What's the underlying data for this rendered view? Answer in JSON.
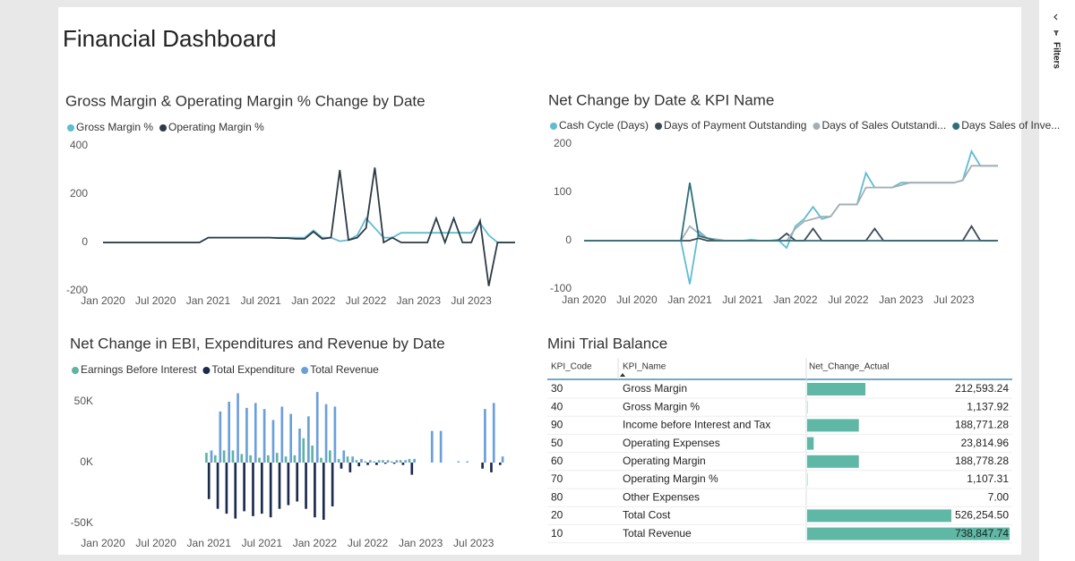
{
  "header": {
    "title": "Financial Dashboard",
    "filters": "Filters"
  },
  "chart_data": [
    {
      "type": "line",
      "title": "Gross Margin & Operating Margin % Change by Date",
      "categories": [
        "Jan 2020",
        null,
        null,
        null,
        null,
        null,
        "Jul 2020",
        null,
        null,
        null,
        null,
        null,
        "Jan 2021",
        null,
        null,
        null,
        null,
        null,
        "Jul 2021",
        null,
        null,
        null,
        null,
        null,
        "Jan 2022",
        null,
        null,
        null,
        null,
        null,
        "Jul 2022",
        null,
        null,
        null,
        null,
        null,
        "Jan 2023",
        null,
        null,
        null,
        null,
        null,
        "Jul 2023",
        null,
        null,
        null,
        null,
        null
      ],
      "series": [
        {
          "name": "Gross Margin %",
          "color": "#5fbcd3",
          "values": [
            0,
            0,
            0,
            0,
            0,
            0,
            0,
            0,
            0,
            0,
            0,
            0,
            20,
            20,
            20,
            20,
            20,
            20,
            20,
            20,
            20,
            20,
            20,
            20,
            50,
            20,
            20,
            5,
            10,
            30,
            100,
            60,
            20,
            20,
            40,
            40,
            40,
            40,
            40,
            40,
            40,
            40,
            40,
            80,
            30,
            0,
            0,
            0
          ]
        },
        {
          "name": "Operating Margin %",
          "color": "#2d3a45",
          "values": [
            0,
            0,
            0,
            0,
            0,
            0,
            0,
            0,
            0,
            0,
            0,
            0,
            20,
            20,
            20,
            20,
            20,
            20,
            20,
            20,
            18,
            18,
            15,
            15,
            45,
            15,
            20,
            300,
            10,
            20,
            60,
            310,
            0,
            20,
            0,
            0,
            0,
            0,
            100,
            0,
            100,
            0,
            0,
            90,
            -180,
            0,
            0,
            0
          ]
        }
      ],
      "ylim": [
        -200,
        400
      ],
      "yticks": [
        -200,
        0,
        200,
        400
      ]
    },
    {
      "type": "line",
      "title": "Net Change by Date & KPI Name",
      "categories": [
        "Jan 2020",
        null,
        null,
        null,
        null,
        null,
        "Jul 2020",
        null,
        null,
        null,
        null,
        null,
        "Jan 2021",
        null,
        null,
        null,
        null,
        null,
        "Jul 2021",
        null,
        null,
        null,
        null,
        null,
        "Jan 2022",
        null,
        null,
        null,
        null,
        null,
        "Jul 2022",
        null,
        null,
        null,
        null,
        null,
        "Jan 2023",
        null,
        null,
        null,
        null,
        null,
        "Jul 2023",
        null,
        null,
        null,
        null,
        null
      ],
      "series": [
        {
          "name": "Cash Cycle (Days)",
          "color": "#5fbcd3",
          "values": [
            0,
            0,
            0,
            0,
            0,
            0,
            0,
            0,
            0,
            0,
            0,
            0,
            -90,
            20,
            5,
            3,
            0,
            0,
            0,
            2,
            0,
            0,
            2,
            -15,
            30,
            45,
            70,
            45,
            50,
            75,
            75,
            75,
            140,
            110,
            110,
            110,
            120,
            120,
            120,
            120,
            120,
            120,
            120,
            125,
            185,
            155,
            155,
            155
          ]
        },
        {
          "name": "Days of Payment Outstanding",
          "color": "#3d4a55",
          "values": [
            0,
            0,
            0,
            0,
            0,
            0,
            0,
            0,
            0,
            0,
            0,
            0,
            0,
            5,
            0,
            0,
            0,
            0,
            0,
            0,
            0,
            0,
            0,
            15,
            0,
            0,
            25,
            0,
            0,
            0,
            0,
            0,
            0,
            25,
            0,
            0,
            0,
            0,
            0,
            0,
            0,
            0,
            0,
            0,
            30,
            0,
            0,
            0
          ]
        },
        {
          "name": "Days of Sales Outstandi...",
          "color": "#a7aeb2",
          "values": [
            0,
            0,
            0,
            0,
            0,
            0,
            0,
            0,
            0,
            0,
            0,
            0,
            30,
            15,
            5,
            3,
            0,
            0,
            0,
            0,
            0,
            0,
            0,
            0,
            25,
            40,
            45,
            50,
            50,
            75,
            75,
            75,
            110,
            110,
            110,
            110,
            115,
            120,
            120,
            120,
            120,
            120,
            120,
            125,
            155,
            155,
            155,
            155
          ]
        },
        {
          "name": "Days Sales of Inve...",
          "color": "#2e6f78",
          "values": [
            0,
            0,
            0,
            0,
            0,
            0,
            0,
            0,
            0,
            0,
            0,
            0,
            120,
            10,
            5,
            0,
            0,
            0,
            0,
            0,
            0,
            0,
            0,
            0,
            0,
            0,
            0,
            0,
            0,
            0,
            0,
            0,
            0,
            0,
            0,
            0,
            0,
            0,
            0,
            0,
            0,
            0,
            0,
            0,
            0,
            0,
            0,
            0
          ]
        }
      ],
      "ylim": [
        -100,
        200
      ],
      "yticks": [
        -100,
        0,
        100,
        200
      ]
    },
    {
      "type": "bar",
      "title": "Net Change in EBI, Expenditures and Revenue by Date",
      "categories": [
        "Jan 2020",
        null,
        null,
        null,
        null,
        null,
        "Jul 2020",
        null,
        null,
        null,
        null,
        null,
        "Jan 2021",
        null,
        null,
        null,
        null,
        null,
        "Jul 2021",
        null,
        null,
        null,
        null,
        null,
        "Jan 2022",
        null,
        null,
        null,
        null,
        null,
        "Jul 2022",
        null,
        null,
        null,
        null,
        null,
        "Jan 2023",
        null,
        null,
        null,
        null,
        null,
        "Jul 2023",
        null,
        null,
        null,
        null,
        null
      ],
      "series": [
        {
          "name": "Earnings Before Interest",
          "color": "#5fb3a1",
          "values": [
            0,
            0,
            0,
            0,
            0,
            0,
            0,
            0,
            0,
            0,
            0,
            0,
            8000,
            6000,
            10000,
            10000,
            7000,
            6000,
            4000,
            6000,
            8000,
            5000,
            6000,
            20000,
            14000,
            4000,
            10000,
            3000,
            5000,
            2000,
            1000,
            1000,
            2000,
            1000,
            2000,
            3000,
            0,
            0,
            0,
            0,
            0,
            0,
            0,
            0,
            0,
            0,
            0,
            0
          ]
        },
        {
          "name": "Total Expenditure",
          "color": "#1b2a4e",
          "values": [
            0,
            0,
            0,
            0,
            0,
            0,
            0,
            0,
            0,
            0,
            0,
            0,
            -30000,
            -38000,
            -42000,
            -46000,
            -40000,
            -44000,
            -42000,
            -45000,
            -38000,
            -35000,
            -32000,
            -38000,
            -45000,
            -47000,
            -36000,
            -5000,
            -8000,
            -3000,
            -2000,
            -2000,
            -1000,
            -1000,
            -2000,
            -10000,
            0,
            0,
            0,
            0,
            0,
            0,
            0,
            -5000,
            -8000,
            -2000,
            0,
            0
          ]
        },
        {
          "name": "Total Revenue",
          "color": "#6b9fd9",
          "values": [
            0,
            0,
            0,
            0,
            0,
            0,
            0,
            0,
            0,
            0,
            0,
            0,
            10000,
            42000,
            50000,
            57000,
            45000,
            49000,
            44000,
            35000,
            46000,
            40000,
            28000,
            38000,
            58000,
            48000,
            46000,
            10000,
            5000,
            3000,
            2000,
            2000,
            2000,
            2000,
            2000,
            3000,
            0,
            26000,
            26000,
            0,
            1000,
            1000,
            0,
            44000,
            49000,
            5000,
            0,
            0
          ]
        }
      ],
      "ylim": [
        -55000,
        60000
      ],
      "yticks": [
        {
          "value": -50000,
          "label": "-50K"
        },
        {
          "value": 0,
          "label": "0K"
        },
        {
          "value": 50000,
          "label": "50K"
        }
      ]
    }
  ],
  "table": {
    "title": "Mini Trial Balance",
    "columns": [
      "KPI_Code",
      "KPI_Name",
      "Net_Change_Actual"
    ],
    "color": "#5fb8a6",
    "codes": [
      "30",
      "40",
      "90",
      "50",
      "60",
      "70",
      "80",
      "20",
      "10"
    ],
    "names": [
      "Gross Margin",
      "Gross Margin %",
      "Income before Interest and Tax",
      "Operating Expenses",
      "Operating Margin",
      "Operating Margin %",
      "Other Expenses",
      "Total Cost",
      "Total Revenue"
    ],
    "values": [
      212593.24,
      1137.92,
      188771.28,
      23814.96,
      188778.28,
      1107.31,
      7,
      526254.5,
      738847.74
    ],
    "value_labels": [
      "212,593.24",
      "1,137.92",
      "188,771.28",
      "23,814.96",
      "188,778.28",
      "1,107.31",
      "7.00",
      "526,254.50",
      "738,847.74"
    ]
  }
}
